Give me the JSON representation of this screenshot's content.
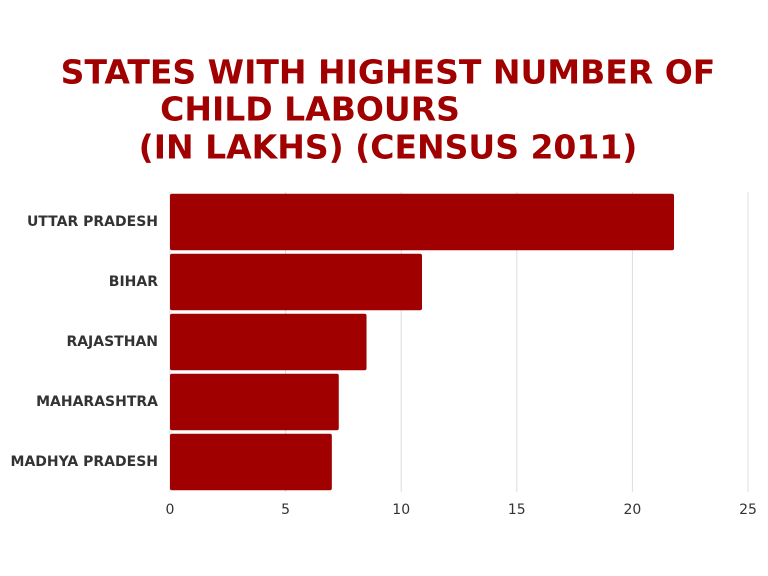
{
  "chart_data": {
    "type": "bar",
    "orientation": "horizontal",
    "title": [
      "STATES WITH HIGHEST NUMBER OF",
      "CHILD LABOURS",
      "(IN LAKHS) (CENSUS 2011)"
    ],
    "categories": [
      "UTTAR PRADESH",
      "BIHAR",
      "RAJASTHAN",
      "MAHARASHTRA",
      "MADHYA PRADESH"
    ],
    "values": [
      21.8,
      10.9,
      8.5,
      7.3,
      7.0
    ],
    "color": "#a00000",
    "xlim": [
      0,
      25
    ],
    "xticks": [
      0,
      5,
      10,
      15,
      20,
      25
    ],
    "grid": true
  }
}
